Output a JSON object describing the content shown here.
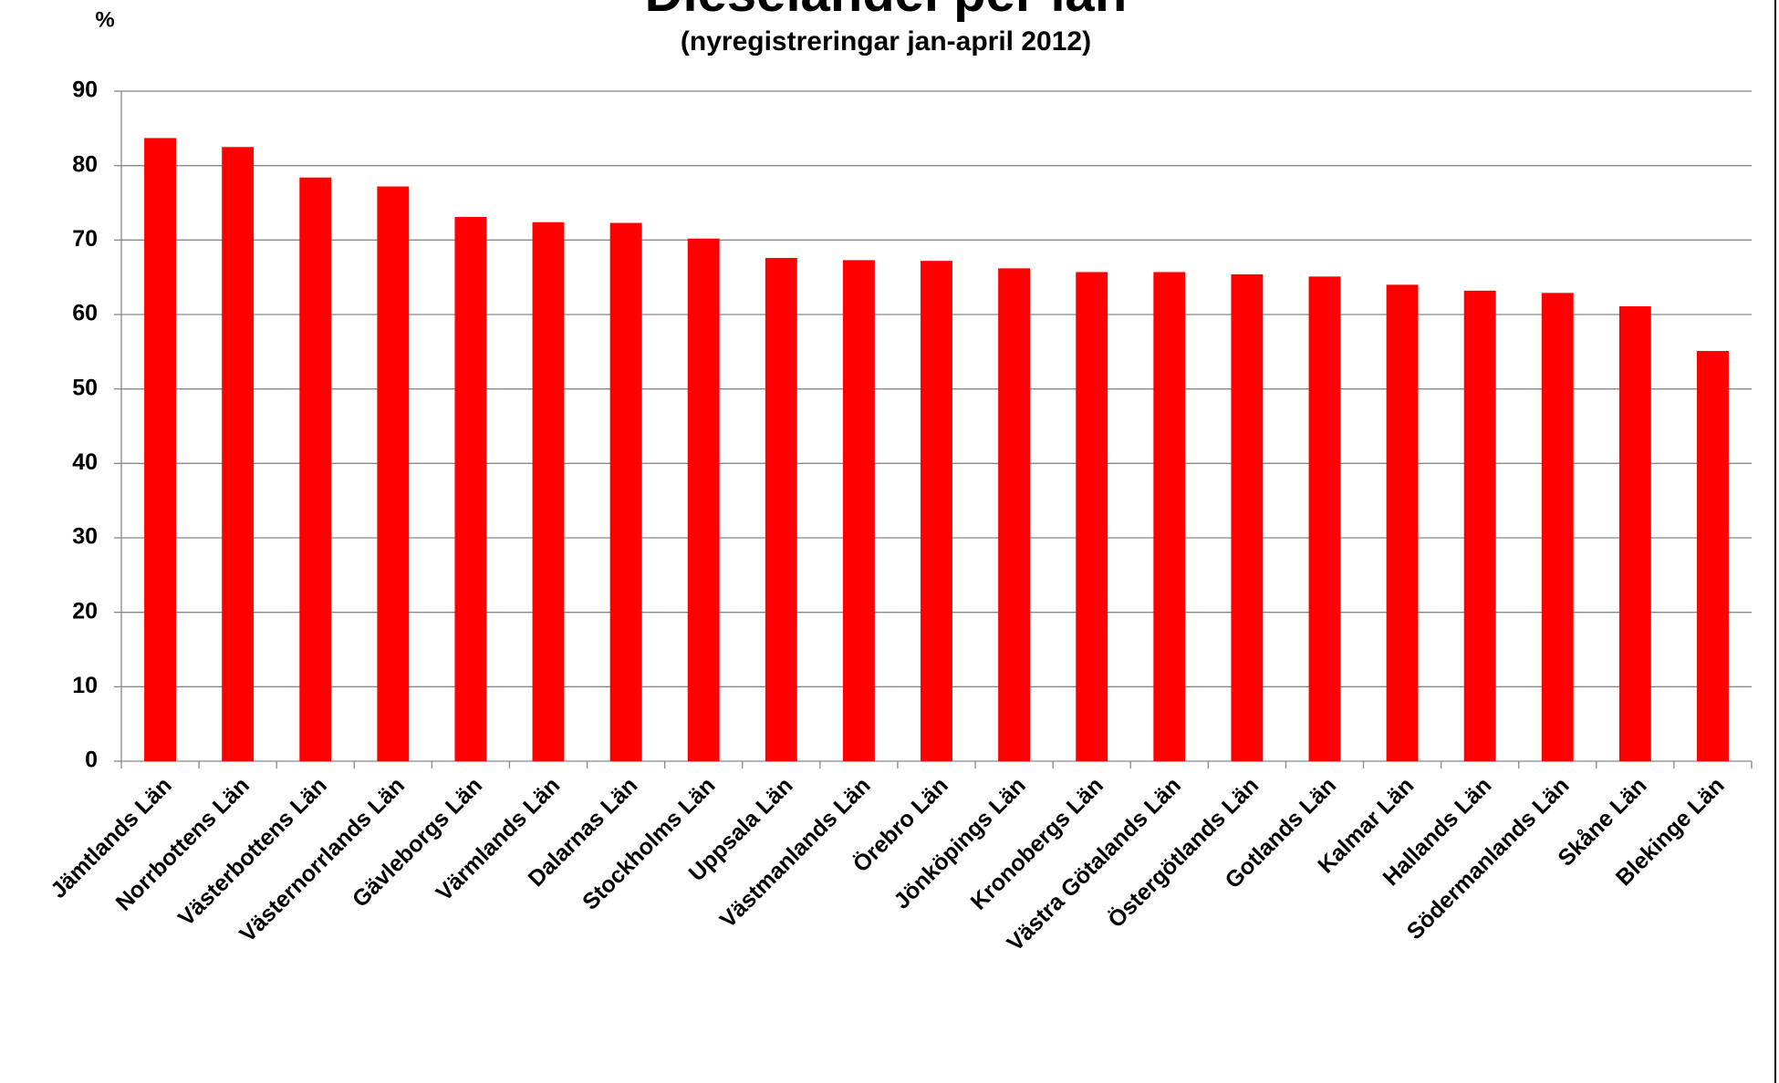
{
  "chart_data": {
    "type": "bar",
    "title": "Dieselandel per län",
    "subtitle": "(nyregistreringar jan-april 2012)",
    "y_label": "%",
    "categories": [
      "Jämtlands Län",
      "Norrbottens Län",
      "Västerbottens Län",
      "Västernorrlands Län",
      "Gävleborgs Län",
      "Värmlands Län",
      "Dalarnas Län",
      "Stockholms Län",
      "Uppsala Län",
      "Västmanlands Län",
      "Örebro Län",
      "Jönköpings Län",
      "Kronobergs Län",
      "Västra Götalands Län",
      "Östergötlands Län",
      "Gotlands Län",
      "Kalmar Län",
      "Hallands Län",
      "Södermanlands Län",
      "Skåne Län",
      "Blekinge Län"
    ],
    "values": [
      83.7,
      82.5,
      78.4,
      77.2,
      73.1,
      72.4,
      72.3,
      70.2,
      67.6,
      67.3,
      67.2,
      66.2,
      65.7,
      65.7,
      65.4,
      65.1,
      64.0,
      63.2,
      62.9,
      61.1,
      55.1
    ],
    "color": "#ff0000",
    "ylim": [
      0,
      90
    ],
    "yticks": [
      0,
      10,
      20,
      30,
      40,
      50,
      60,
      70,
      80,
      90
    ],
    "grid": true
  }
}
